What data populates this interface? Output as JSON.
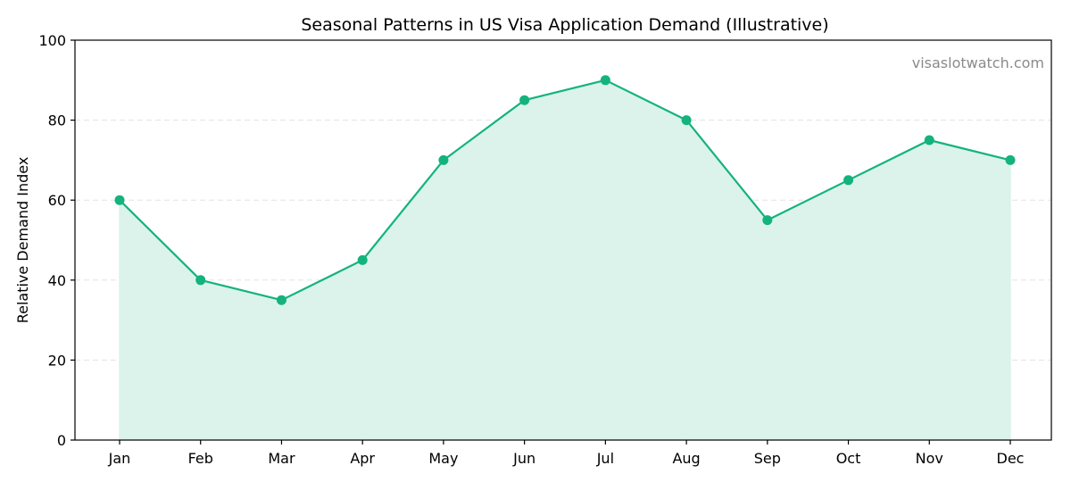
{
  "chart_data": {
    "type": "area",
    "title": "Seasonal Patterns in US Visa Application Demand (Illustrative)",
    "xlabel": "",
    "ylabel": "Relative Demand Index",
    "categories": [
      "Jan",
      "Feb",
      "Mar",
      "Apr",
      "May",
      "Jun",
      "Jul",
      "Aug",
      "Sep",
      "Oct",
      "Nov",
      "Dec"
    ],
    "series": [
      {
        "values": [
          60,
          40,
          35,
          45,
          70,
          85,
          90,
          80,
          55,
          65,
          75,
          70
        ]
      }
    ],
    "ylim": [
      0,
      100
    ],
    "yticks": [
      0,
      20,
      40,
      60,
      80,
      100
    ],
    "grid": "horizontal-dashed",
    "legend": "none",
    "watermark": "visaslotwatch.com",
    "colors": {
      "line": "#13b37d",
      "fill": "#dbf3ea",
      "marker": "#13b37d"
    }
  }
}
